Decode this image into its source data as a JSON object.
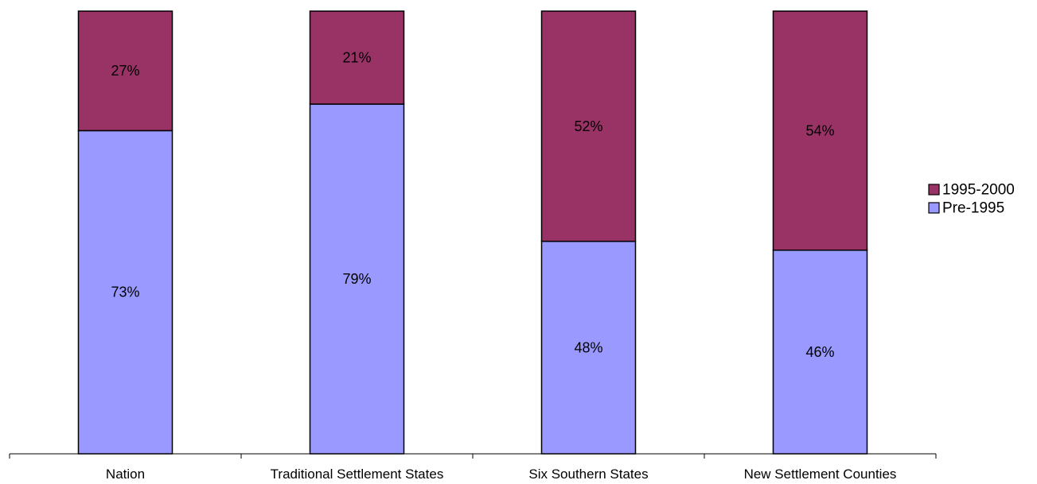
{
  "chart_data": {
    "type": "bar",
    "stacked": true,
    "categories": [
      "Nation",
      "Traditional Settlement States",
      "Six Southern States",
      "New Settlement Counties"
    ],
    "series": [
      {
        "name": "Pre-1995",
        "values": [
          73,
          79,
          48,
          46
        ],
        "labels": [
          "73%",
          "79%",
          "48%",
          "46%"
        ],
        "color": "#9999ff"
      },
      {
        "name": "1995-2000",
        "values": [
          27,
          21,
          52,
          54
        ],
        "labels": [
          "27%",
          "21%",
          "52%",
          "54%"
        ],
        "color": "#993366"
      }
    ],
    "ylim": [
      0,
      100
    ],
    "grid": false,
    "legend_position": "right",
    "legend_order": [
      "1995-2000",
      "Pre-1995"
    ]
  }
}
